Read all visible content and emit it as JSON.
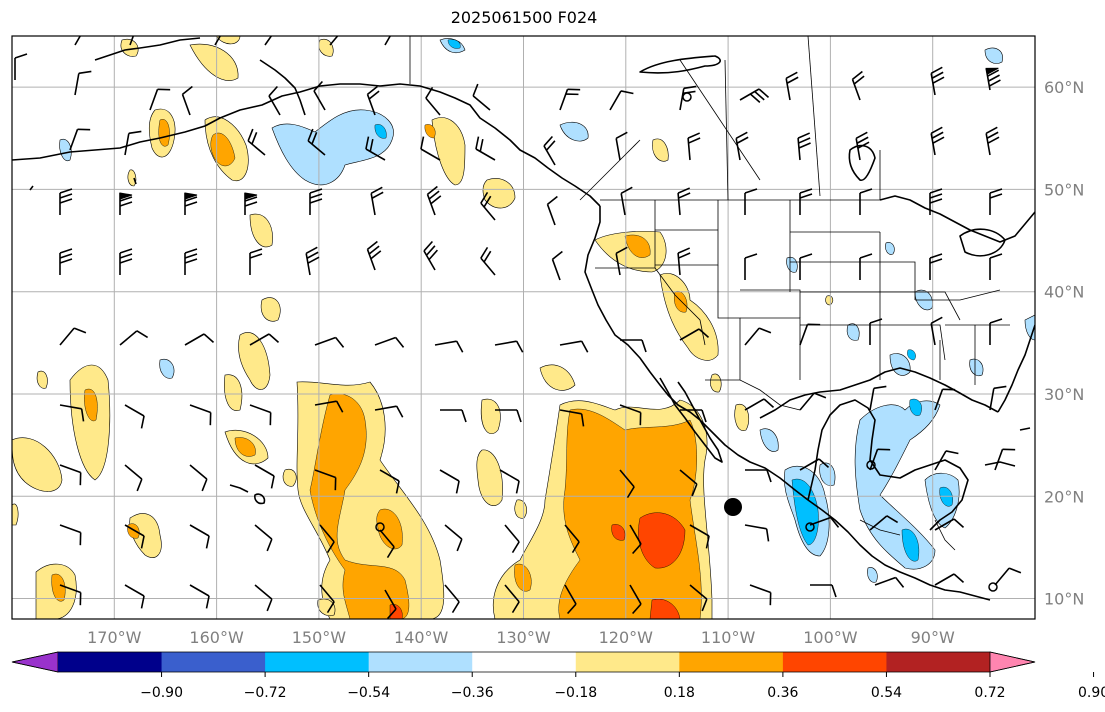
{
  "title": "2025061500 F024",
  "lon_labels": [
    "170°W",
    "160°W",
    "150°W",
    "140°W",
    "130°W",
    "120°W",
    "110°W",
    "100°W",
    "90°W"
  ],
  "lat_labels": [
    "60°N",
    "50°N",
    "40°N",
    "30°N",
    "20°N",
    "10°N"
  ],
  "map_extent": {
    "lon_min": -180,
    "lon_max": -80,
    "lat_min": 8,
    "lat_max": 65
  },
  "gridline_lons": [
    -170,
    -160,
    -150,
    -140,
    -130,
    -120,
    -110,
    -100,
    -90
  ],
  "gridline_lats": [
    60,
    50,
    40,
    30,
    20,
    10
  ],
  "colorbar": {
    "labels": [
      "−0.90",
      "−0.72",
      "−0.54",
      "−0.36",
      "−0.18",
      "0.18",
      "0.36",
      "0.54",
      "0.72",
      "0.90"
    ],
    "colors": [
      "#9932cc",
      "#00008b",
      "#3a5fcd",
      "#00bfff",
      "#afe0ff",
      "#ffffff",
      "#ffe98a",
      "#ffa500",
      "#ff4500",
      "#b22222",
      "#ff85b0"
    ]
  },
  "colors": {
    "light_yellow": "#ffe98a",
    "orange": "#ffa500",
    "red_orange": "#ff4500",
    "light_blue": "#afe0ff",
    "deep_sky_blue": "#00bfff",
    "gridline": "#b0b0b0",
    "coastline": "#000000"
  }
}
